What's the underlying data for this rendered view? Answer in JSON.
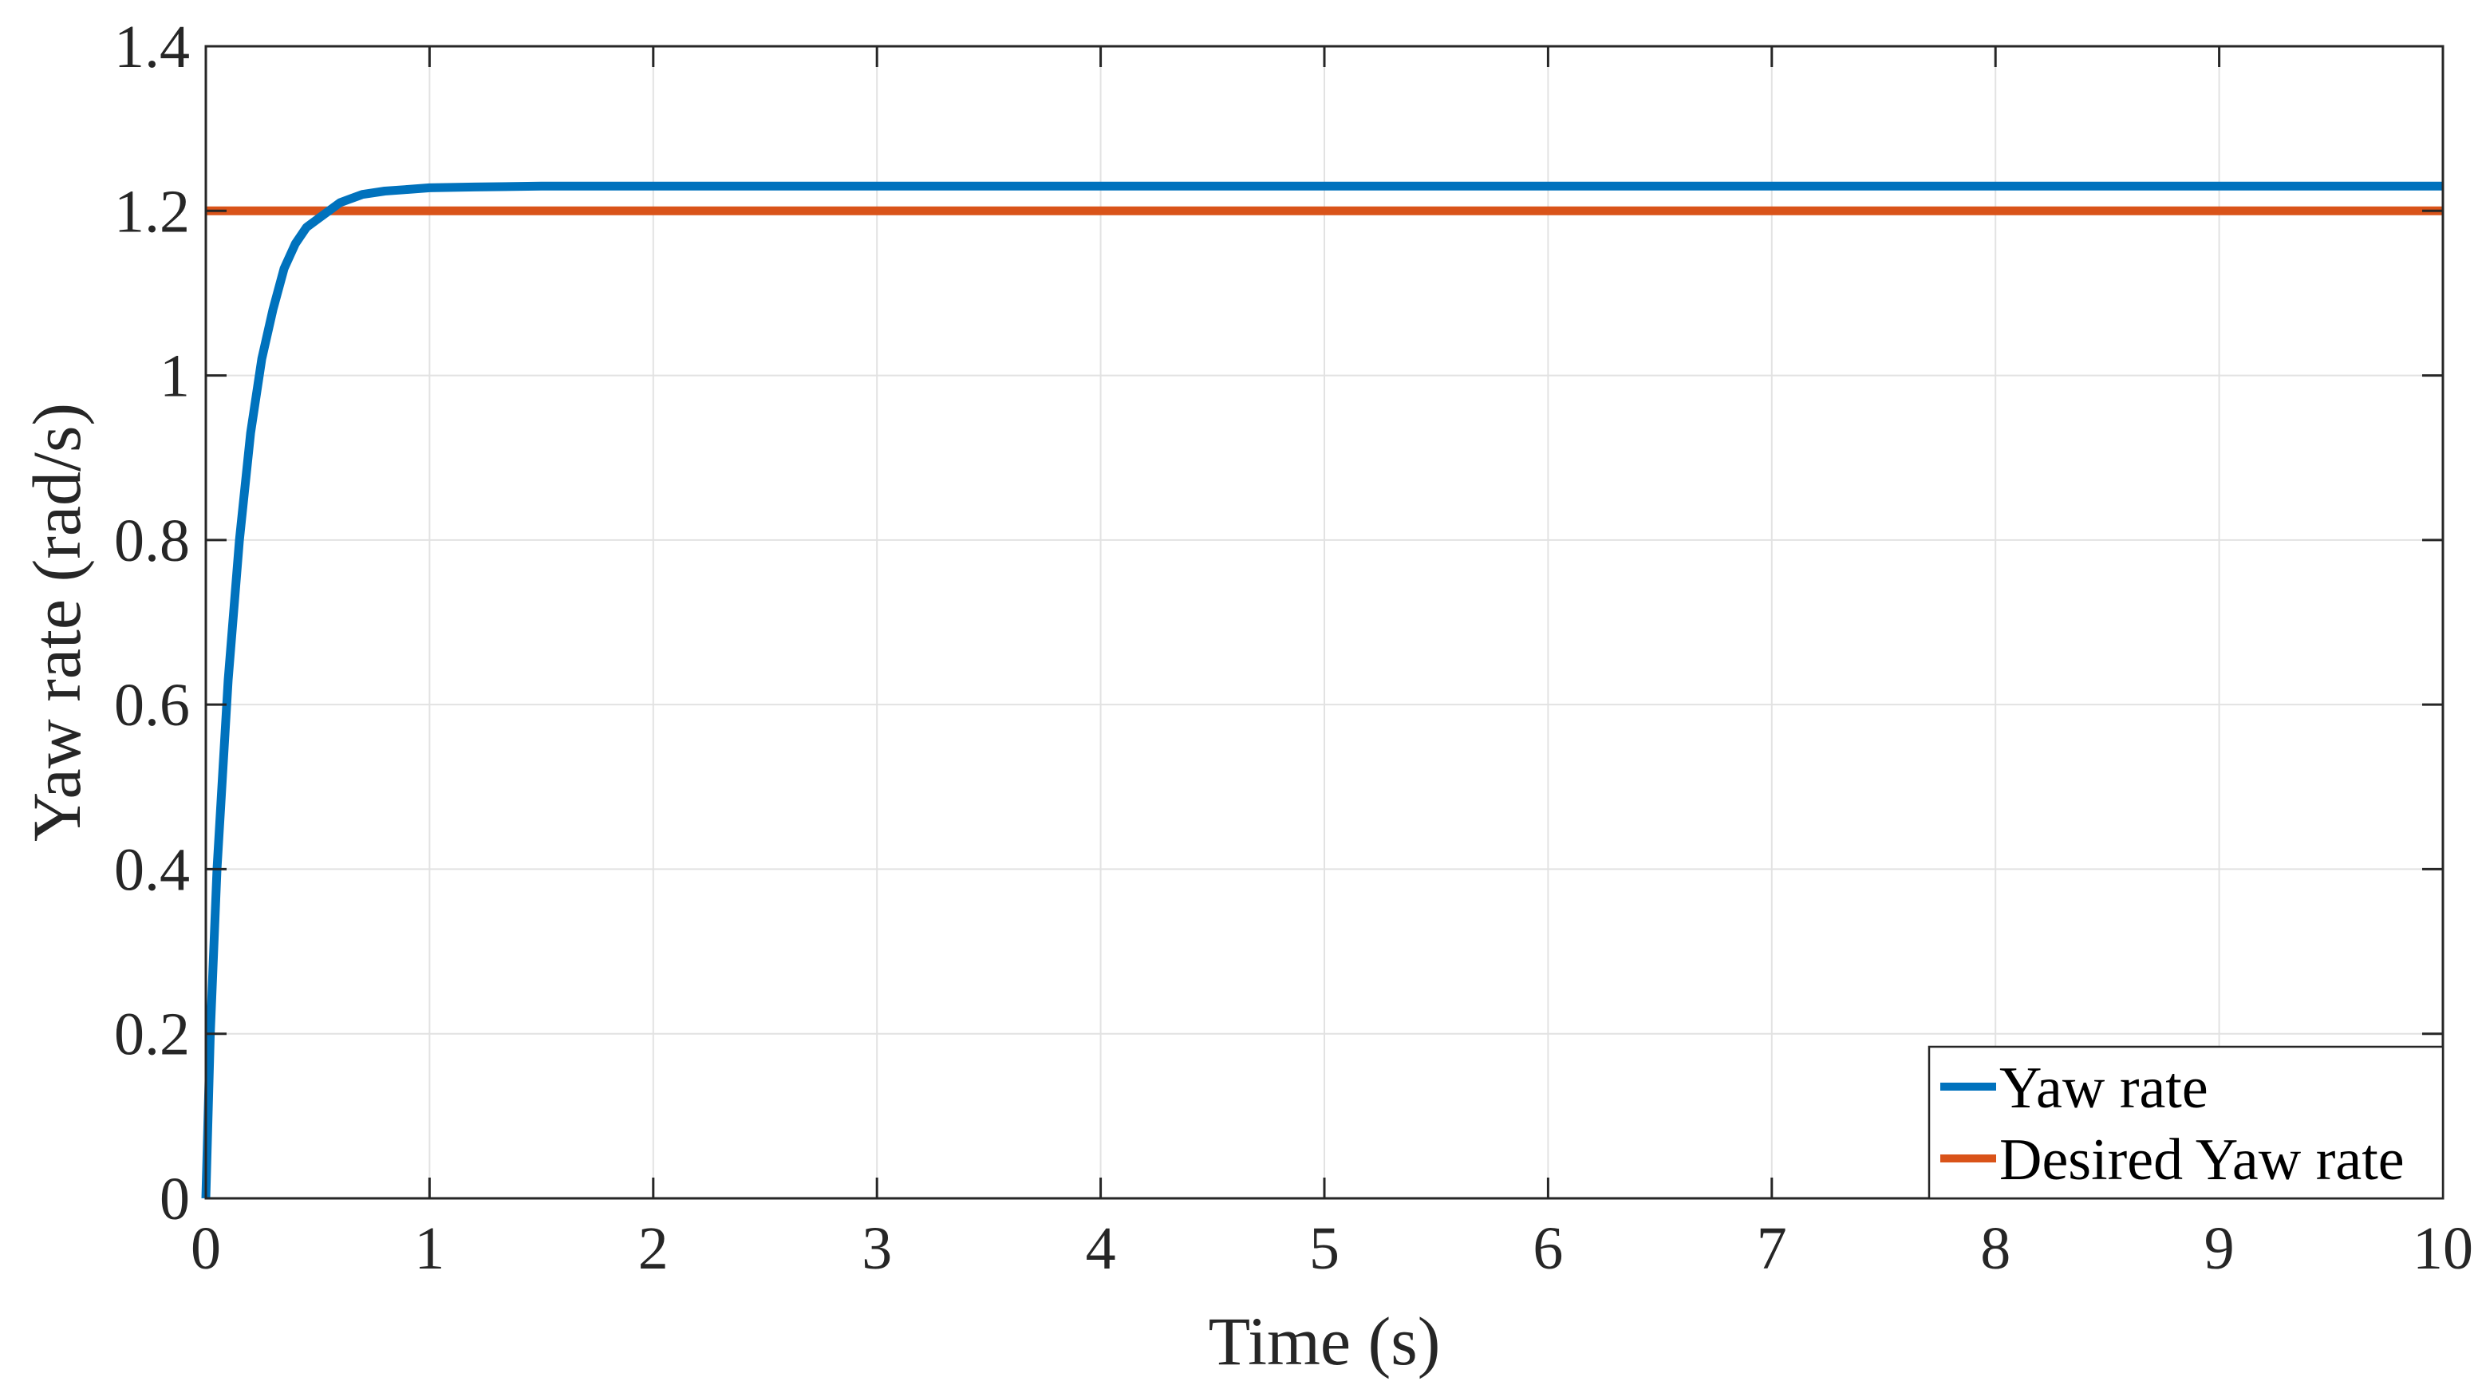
{
  "chart_data": {
    "type": "line",
    "xlabel": "Time (s)",
    "ylabel": "Yaw rate (rad/s)",
    "xlim": [
      0,
      10
    ],
    "ylim": [
      0,
      1.4
    ],
    "xticks": [
      0,
      1,
      2,
      3,
      4,
      5,
      6,
      7,
      8,
      9,
      10
    ],
    "yticks": [
      0,
      0.2,
      0.4,
      0.6,
      0.8,
      1,
      1.2,
      1.4
    ],
    "xtick_labels": [
      "0",
      "1",
      "2",
      "3",
      "4",
      "5",
      "6",
      "7",
      "8",
      "9",
      "10"
    ],
    "ytick_labels": [
      "0",
      "0.2",
      "0.4",
      "0.6",
      "0.8",
      "1",
      "1.2",
      "1.4"
    ],
    "grid": true,
    "legend_position": "bottom-right",
    "series": [
      {
        "name": "Yaw rate",
        "color": "#0072BD",
        "x": [
          0,
          0.02,
          0.05,
          0.1,
          0.15,
          0.2,
          0.25,
          0.3,
          0.35,
          0.4,
          0.45,
          0.5,
          0.55,
          0.6,
          0.65,
          0.7,
          0.8,
          0.9,
          1.0,
          1.2,
          1.5,
          2,
          3,
          4,
          5,
          6,
          7,
          8,
          9,
          10
        ],
        "y": [
          0,
          0.2,
          0.4,
          0.63,
          0.8,
          0.93,
          1.02,
          1.08,
          1.13,
          1.16,
          1.18,
          1.19,
          1.2,
          1.21,
          1.215,
          1.22,
          1.224,
          1.226,
          1.228,
          1.229,
          1.23,
          1.23,
          1.23,
          1.23,
          1.23,
          1.23,
          1.23,
          1.23,
          1.23,
          1.23
        ]
      },
      {
        "name": "Desired Yaw rate",
        "color": "#D95319",
        "x": [
          0,
          10
        ],
        "y": [
          1.2,
          1.2
        ]
      }
    ]
  }
}
